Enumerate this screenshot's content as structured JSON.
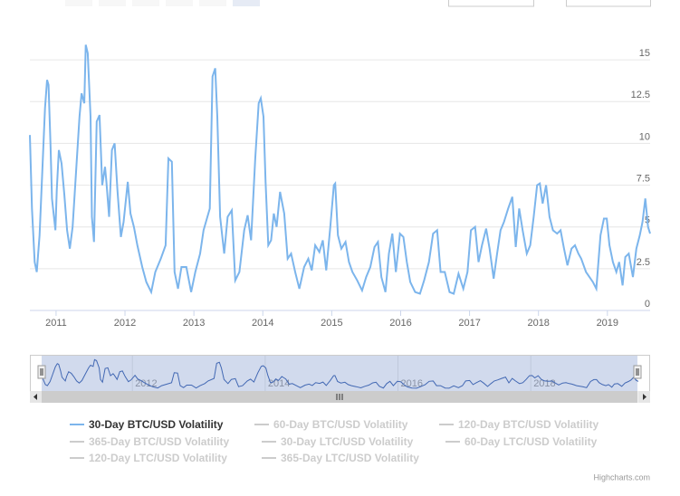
{
  "chart_data": {
    "type": "line",
    "xlim": [
      2010.62,
      2019.62
    ],
    "xticks": [
      2011,
      2012,
      2013,
      2014,
      2015,
      2016,
      2017,
      2018,
      2019
    ],
    "ylim": [
      0,
      17.5
    ],
    "yticks": [
      0,
      {
        "value": 2.5,
        "label": "2.5"
      },
      5,
      {
        "value": 7.5,
        "label": "7.5"
      },
      10,
      {
        "value": 12.5,
        "label": "12.5"
      },
      15
    ],
    "grid": true,
    "series": [
      {
        "name": "30-Day BTC/USD Volatility",
        "color": "#7cb5ec",
        "visible": true,
        "x": [
          2010.62,
          2010.65,
          2010.69,
          2010.72,
          2010.76,
          2010.8,
          2010.84,
          2010.87,
          2010.89,
          2010.92,
          2010.94,
          2010.99,
          2011.01,
          2011.04,
          2011.08,
          2011.12,
          2011.16,
          2011.2,
          2011.24,
          2011.29,
          2011.34,
          2011.37,
          2011.41,
          2011.43,
          2011.46,
          2011.5,
          2011.52,
          2011.55,
          2011.59,
          2011.63,
          2011.67,
          2011.71,
          2011.73,
          2011.77,
          2011.81,
          2011.85,
          2011.89,
          2011.94,
          2011.98,
          2012.04,
          2012.08,
          2012.13,
          2012.18,
          2012.25,
          2012.31,
          2012.38,
          2012.44,
          2012.52,
          2012.59,
          2012.63,
          2012.68,
          2012.72,
          2012.77,
          2012.82,
          2012.89,
          2012.96,
          2013.02,
          2013.09,
          2013.14,
          2013.23,
          2013.27,
          2013.31,
          2013.34,
          2013.38,
          2013.44,
          2013.49,
          2013.55,
          2013.6,
          2013.66,
          2013.73,
          2013.78,
          2013.83,
          2013.89,
          2013.94,
          2013.97,
          2014.01,
          2014.04,
          2014.08,
          2014.12,
          2014.16,
          2014.2,
          2014.25,
          2014.31,
          2014.36,
          2014.41,
          2014.47,
          2014.53,
          2014.6,
          2014.66,
          2014.71,
          2014.76,
          2014.82,
          2014.87,
          2014.92,
          2014.98,
          2015.03,
          2015.05,
          2015.09,
          2015.14,
          2015.2,
          2015.25,
          2015.3,
          2015.37,
          2015.44,
          2015.5,
          2015.56,
          2015.62,
          2015.67,
          2015.72,
          2015.78,
          2015.83,
          2015.88,
          2015.93,
          2015.99,
          2016.04,
          2016.09,
          2016.14,
          2016.21,
          2016.28,
          2016.34,
          2016.41,
          2016.47,
          2016.53,
          2016.58,
          2016.64,
          2016.71,
          2016.77,
          2016.84,
          2016.91,
          2016.97,
          2017.02,
          2017.08,
          2017.13,
          2017.18,
          2017.24,
          2017.29,
          2017.35,
          2017.4,
          2017.45,
          2017.5,
          2017.56,
          2017.62,
          2017.67,
          2017.72,
          2017.77,
          2017.83,
          2017.88,
          2017.93,
          2017.98,
          2018.02,
          2018.06,
          2018.11,
          2018.16,
          2018.21,
          2018.27,
          2018.32,
          2018.37,
          2018.42,
          2018.48,
          2018.53,
          2018.58,
          2018.62,
          2018.69,
          2018.74,
          2018.79,
          2018.84,
          2018.9,
          2018.95,
          2018.99,
          2019.03,
          2019.08,
          2019.13,
          2019.17,
          2019.22,
          2019.26,
          2019.31,
          2019.37,
          2019.42,
          2019.47,
          2019.51,
          2019.55,
          2019.59,
          2019.62
        ],
        "values": [
          10.5,
          6.1,
          2.9,
          2.3,
          4.5,
          8.3,
          12.1,
          13.8,
          13.5,
          9.9,
          6.7,
          4.8,
          7.2,
          9.6,
          8.8,
          6.9,
          4.8,
          3.7,
          5.0,
          8.3,
          11.6,
          13.0,
          12.4,
          15.9,
          15.4,
          11.6,
          5.6,
          4.1,
          11.3,
          11.7,
          7.5,
          8.6,
          7.7,
          5.6,
          9.6,
          10.0,
          7.2,
          4.4,
          5.3,
          7.7,
          5.8,
          5.0,
          3.9,
          2.6,
          1.7,
          1.1,
          2.3,
          3.1,
          3.9,
          9.1,
          8.9,
          2.3,
          1.3,
          2.6,
          2.6,
          1.1,
          2.3,
          3.4,
          4.8,
          6.1,
          14.0,
          14.5,
          11.6,
          5.6,
          3.4,
          5.6,
          6.0,
          1.8,
          2.3,
          4.8,
          5.7,
          4.2,
          9.1,
          12.4,
          12.7,
          11.6,
          7.7,
          3.9,
          4.2,
          5.8,
          5.0,
          7.1,
          5.8,
          3.1,
          3.4,
          2.3,
          1.3,
          2.6,
          3.1,
          2.4,
          3.9,
          3.5,
          4.2,
          2.4,
          5.0,
          7.5,
          7.6,
          4.5,
          3.7,
          4.1,
          2.9,
          2.3,
          1.8,
          1.2,
          2.0,
          2.6,
          3.8,
          4.1,
          2.0,
          1.1,
          3.4,
          4.6,
          2.3,
          4.6,
          4.4,
          2.9,
          1.7,
          1.1,
          1.0,
          1.8,
          2.9,
          4.6,
          4.8,
          2.3,
          2.3,
          1.1,
          1.0,
          2.2,
          1.3,
          2.3,
          4.8,
          5.0,
          2.9,
          3.9,
          4.9,
          3.7,
          1.9,
          3.4,
          4.8,
          5.3,
          6.1,
          6.8,
          3.8,
          6.1,
          4.8,
          3.4,
          3.9,
          5.6,
          7.5,
          7.6,
          6.4,
          7.5,
          5.6,
          4.8,
          4.6,
          4.8,
          3.7,
          2.7,
          3.7,
          3.9,
          3.4,
          3.1,
          2.3,
          2.0,
          1.7,
          1.3,
          4.5,
          5.5,
          5.5,
          3.9,
          2.9,
          2.3,
          2.9,
          1.5,
          3.2,
          3.4,
          2.0,
          3.7,
          4.5,
          5.3,
          6.7,
          5.0,
          4.6
        ]
      },
      {
        "name": "60-Day BTC/USD Volatility",
        "color": "#cccccc",
        "visible": false
      },
      {
        "name": "120-Day BTC/USD Volatility",
        "color": "#cccccc",
        "visible": false
      },
      {
        "name": "365-Day BTC/USD Volatility",
        "color": "#cccccc",
        "visible": false
      },
      {
        "name": "30-Day LTC/USD Volatility",
        "color": "#cccccc",
        "visible": false
      },
      {
        "name": "60-Day LTC/USD Volatility",
        "color": "#cccccc",
        "visible": false
      },
      {
        "name": "120-Day LTC/USD Volatility",
        "color": "#cccccc",
        "visible": false
      },
      {
        "name": "365-Day LTC/USD Volatility",
        "color": "#cccccc",
        "visible": false
      }
    ],
    "navigator": {
      "xticks": [
        2012,
        2014,
        2016,
        2018
      ]
    },
    "credits": "Highcharts.com"
  }
}
